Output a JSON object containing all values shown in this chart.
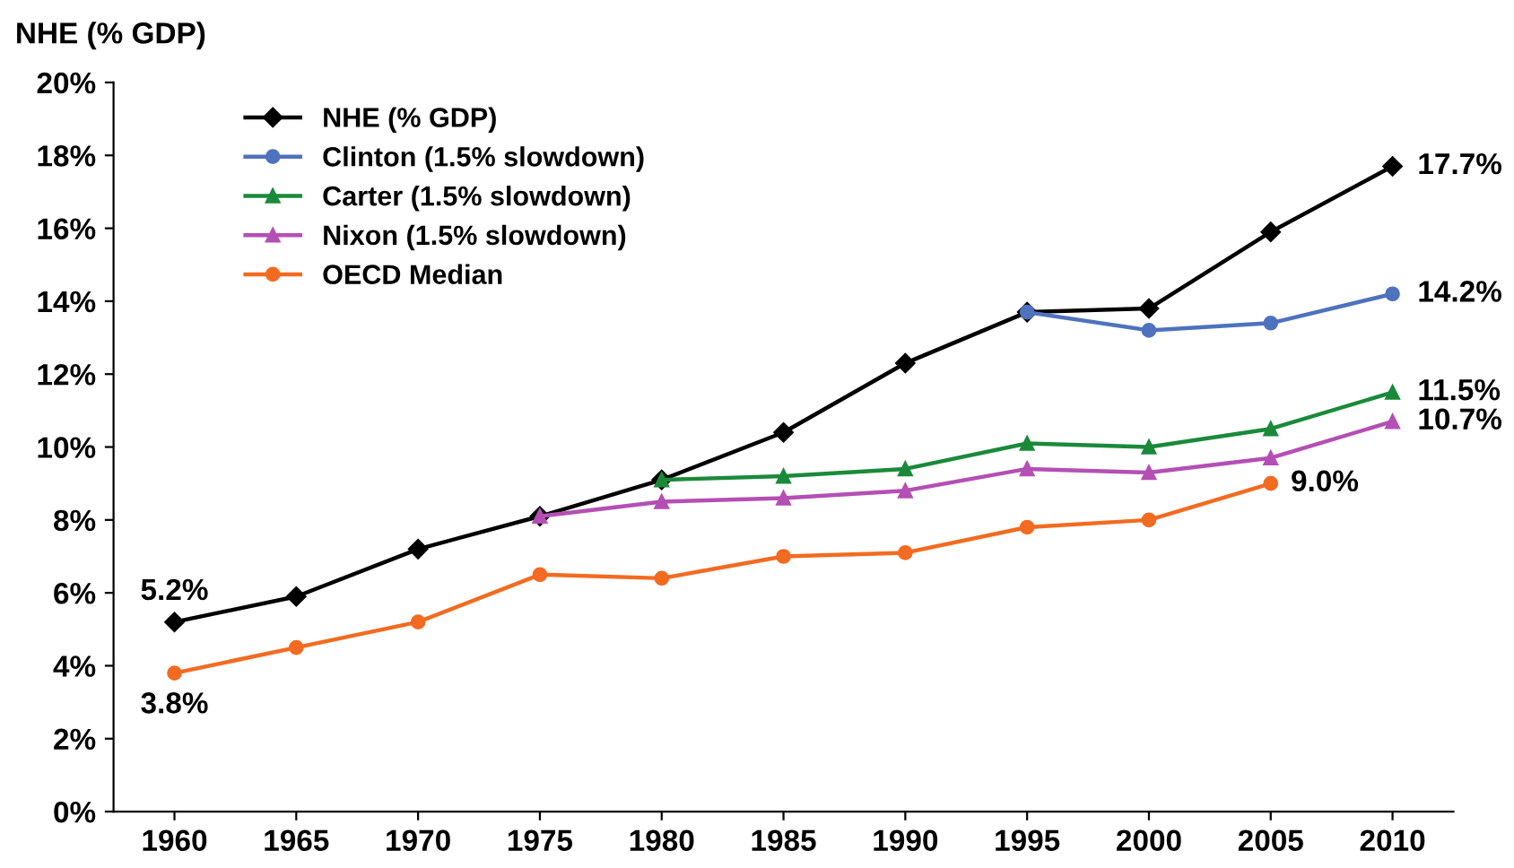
{
  "chart_data": {
    "type": "line",
    "ylabel": "NHE (% GDP)",
    "categories": [
      "1960",
      "1965",
      "1970",
      "1975",
      "1980",
      "1985",
      "1990",
      "1995",
      "2000",
      "2005",
      "2010"
    ],
    "series": [
      {
        "name": "NHE (% GDP)",
        "color": "#000000",
        "marker": "diamond",
        "values": [
          5.2,
          5.9,
          7.2,
          8.1,
          9.1,
          10.4,
          12.3,
          13.7,
          13.8,
          15.9,
          17.7
        ],
        "value_labels": [
          "5.2%",
          null,
          null,
          null,
          null,
          null,
          null,
          null,
          null,
          null,
          "17.7%"
        ]
      },
      {
        "name": "Clinton (1.5% slowdown)",
        "color": "#4f72be",
        "marker": "circle",
        "values": [
          null,
          null,
          null,
          null,
          null,
          null,
          null,
          13.7,
          13.2,
          13.4,
          14.2
        ],
        "value_labels": [
          null,
          null,
          null,
          null,
          null,
          null,
          null,
          null,
          null,
          null,
          "14.2%"
        ]
      },
      {
        "name": "Carter (1.5% slowdown)",
        "color": "#1a8a3a",
        "marker": "triangle",
        "values": [
          null,
          null,
          null,
          null,
          9.1,
          9.2,
          9.4,
          10.1,
          10.0,
          10.5,
          11.5
        ],
        "value_labels": [
          null,
          null,
          null,
          null,
          null,
          null,
          null,
          null,
          null,
          null,
          "11.5%"
        ]
      },
      {
        "name": "Nixon (1.5% slowdown)",
        "color": "#b44fb4",
        "marker": "triangle",
        "values": [
          null,
          null,
          null,
          8.1,
          8.5,
          8.6,
          8.8,
          9.4,
          9.3,
          9.7,
          10.7
        ],
        "value_labels": [
          null,
          null,
          null,
          null,
          null,
          null,
          null,
          null,
          null,
          null,
          "10.7%"
        ]
      },
      {
        "name": "OECD Median",
        "color": "#f26b21",
        "marker": "circle",
        "values": [
          3.8,
          4.5,
          5.2,
          6.5,
          6.4,
          7.0,
          7.1,
          7.8,
          8.0,
          9.0,
          null
        ],
        "value_labels": [
          "3.8%",
          null,
          null,
          null,
          null,
          null,
          null,
          null,
          null,
          "9.0%",
          null
        ]
      }
    ],
    "ylim": [
      0,
      20
    ],
    "yticks": [
      {
        "value": 0,
        "label": "0%"
      },
      {
        "value": 2,
        "label": "2%"
      },
      {
        "value": 4,
        "label": "4%"
      },
      {
        "value": 6,
        "label": "6%"
      },
      {
        "value": 8,
        "label": "8%"
      },
      {
        "value": 10,
        "label": "10%"
      },
      {
        "value": 12,
        "label": "12%"
      },
      {
        "value": 14,
        "label": "14%"
      },
      {
        "value": 16,
        "label": "16%"
      },
      {
        "value": 18,
        "label": "18%"
      },
      {
        "value": 20,
        "label": "20%"
      }
    ],
    "grid": false,
    "legend": "top left",
    "line_style": "solid"
  }
}
